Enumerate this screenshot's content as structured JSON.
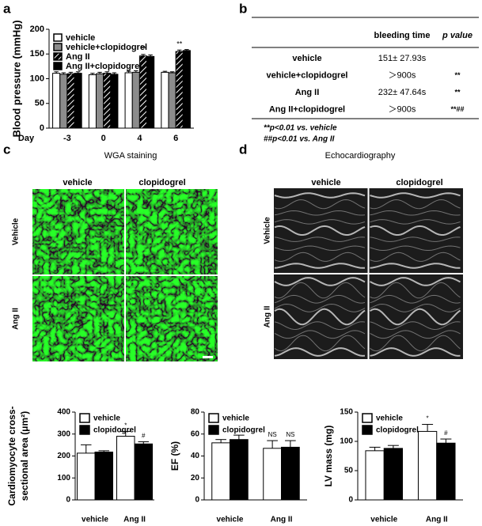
{
  "panels": [
    "a",
    "b",
    "c",
    "d"
  ],
  "chart_data": [
    {
      "type": "bar",
      "ylabel": [
        "Blood pressure (mmHg)"
      ],
      "xlabel": "Day",
      "categories": [
        "-3",
        "0",
        "4",
        "6"
      ],
      "ylim": [
        0,
        200
      ],
      "yticks": [
        0,
        50,
        100,
        150,
        200
      ],
      "legend": "upper left",
      "series": [
        {
          "name": "vehicle",
          "color": "#ffffff",
          "values": [
            111,
            108,
            112,
            113
          ],
          "errors": [
            3,
            3,
            3,
            2
          ]
        },
        {
          "name": "vehicle+clopidogrel",
          "color": "#8c8c8c",
          "values": [
            109,
            110,
            113,
            112
          ],
          "errors": [
            3,
            3,
            3,
            2
          ]
        },
        {
          "name": "Ang II",
          "color": "#000000",
          "hatch": true,
          "values": [
            110,
            111,
            146,
            155
          ],
          "errors": [
            3,
            3,
            3,
            3
          ],
          "annotations": [
            null,
            null,
            "**",
            "**"
          ]
        },
        {
          "name": "Ang II+clopidogrel",
          "color": "#000000",
          "values": [
            111,
            109,
            145,
            157
          ],
          "errors": [
            3,
            3,
            3,
            2
          ]
        }
      ]
    },
    {
      "type": "bar",
      "ylabel": [
        "Cardiomyocyte cross-",
        "sectional area (μm²)"
      ],
      "categories": [
        "vehicle",
        "Ang II"
      ],
      "ylim": [
        0,
        400
      ],
      "yticks": [
        0,
        100,
        200,
        300,
        400
      ],
      "legend": "upper left",
      "series": [
        {
          "name": "vehicle",
          "color": "#ffffff",
          "values": [
            213,
            290
          ],
          "errors": [
            38,
            22
          ],
          "annotations": [
            null,
            "*"
          ]
        },
        {
          "name": "clopidogrel",
          "color": "#000000",
          "values": [
            218,
            255
          ],
          "errors": [
            6,
            10
          ],
          "annotations": [
            null,
            "#"
          ]
        }
      ]
    },
    {
      "type": "bar",
      "ylabel": [
        "EF (%)"
      ],
      "categories": [
        "vehicle",
        "Ang II"
      ],
      "ylim": [
        0,
        80
      ],
      "yticks": [
        0,
        20,
        40,
        60,
        80
      ],
      "legend": "upper left",
      "series": [
        {
          "name": "vehicle",
          "color": "#ffffff",
          "values": [
            52,
            47
          ],
          "errors": [
            3,
            7
          ],
          "annotations": [
            null,
            "NS"
          ]
        },
        {
          "name": "clopidogrel",
          "color": "#000000",
          "values": [
            55,
            48
          ],
          "errors": [
            4,
            6
          ],
          "annotations": [
            null,
            "NS"
          ]
        }
      ]
    },
    {
      "type": "bar",
      "ylabel": [
        "LV mass (mg)"
      ],
      "categories": [
        "vehicle",
        "Ang II"
      ],
      "ylim": [
        0,
        150
      ],
      "yticks": [
        0,
        50,
        100,
        150
      ],
      "legend": "upper left",
      "series": [
        {
          "name": "vehicle",
          "color": "#ffffff",
          "values": [
            84,
            117
          ],
          "errors": [
            6,
            12
          ],
          "annotations": [
            null,
            "*"
          ]
        },
        {
          "name": "clopidogrel",
          "color": "#000000",
          "values": [
            88,
            97
          ],
          "errors": [
            5,
            7
          ],
          "annotations": [
            null,
            "#"
          ]
        }
      ]
    }
  ],
  "table": {
    "columns": [
      "bleeding time",
      "p value"
    ],
    "rows": [
      {
        "group": "vehicle",
        "bleeding_time": "151± 27.93s"
      },
      {
        "group": "vehicle+clopidogrel",
        "bleeding_time": "＞900s",
        "p_value": "**"
      },
      {
        "group": "Ang II",
        "bleeding_time": "232± 47.64s",
        "p_value": "**"
      },
      {
        "group": "Ang II+clopidogrel",
        "bleeding_time": "＞900s",
        "p_value": "**##"
      }
    ],
    "footnotes": [
      "**p<0.01 vs. vehicle",
      "##p<0.01 vs. Ang II"
    ]
  },
  "images": [
    {
      "title": "WGA staining",
      "columns": [
        "vehicle",
        "clopidogrel"
      ],
      "rows": [
        "Vehicle",
        "Ang II"
      ]
    },
    {
      "title": "Echocardiography",
      "columns": [
        "vehicle",
        "clopidogrel"
      ],
      "rows": [
        "Vehicle",
        "Ang II"
      ]
    }
  ]
}
